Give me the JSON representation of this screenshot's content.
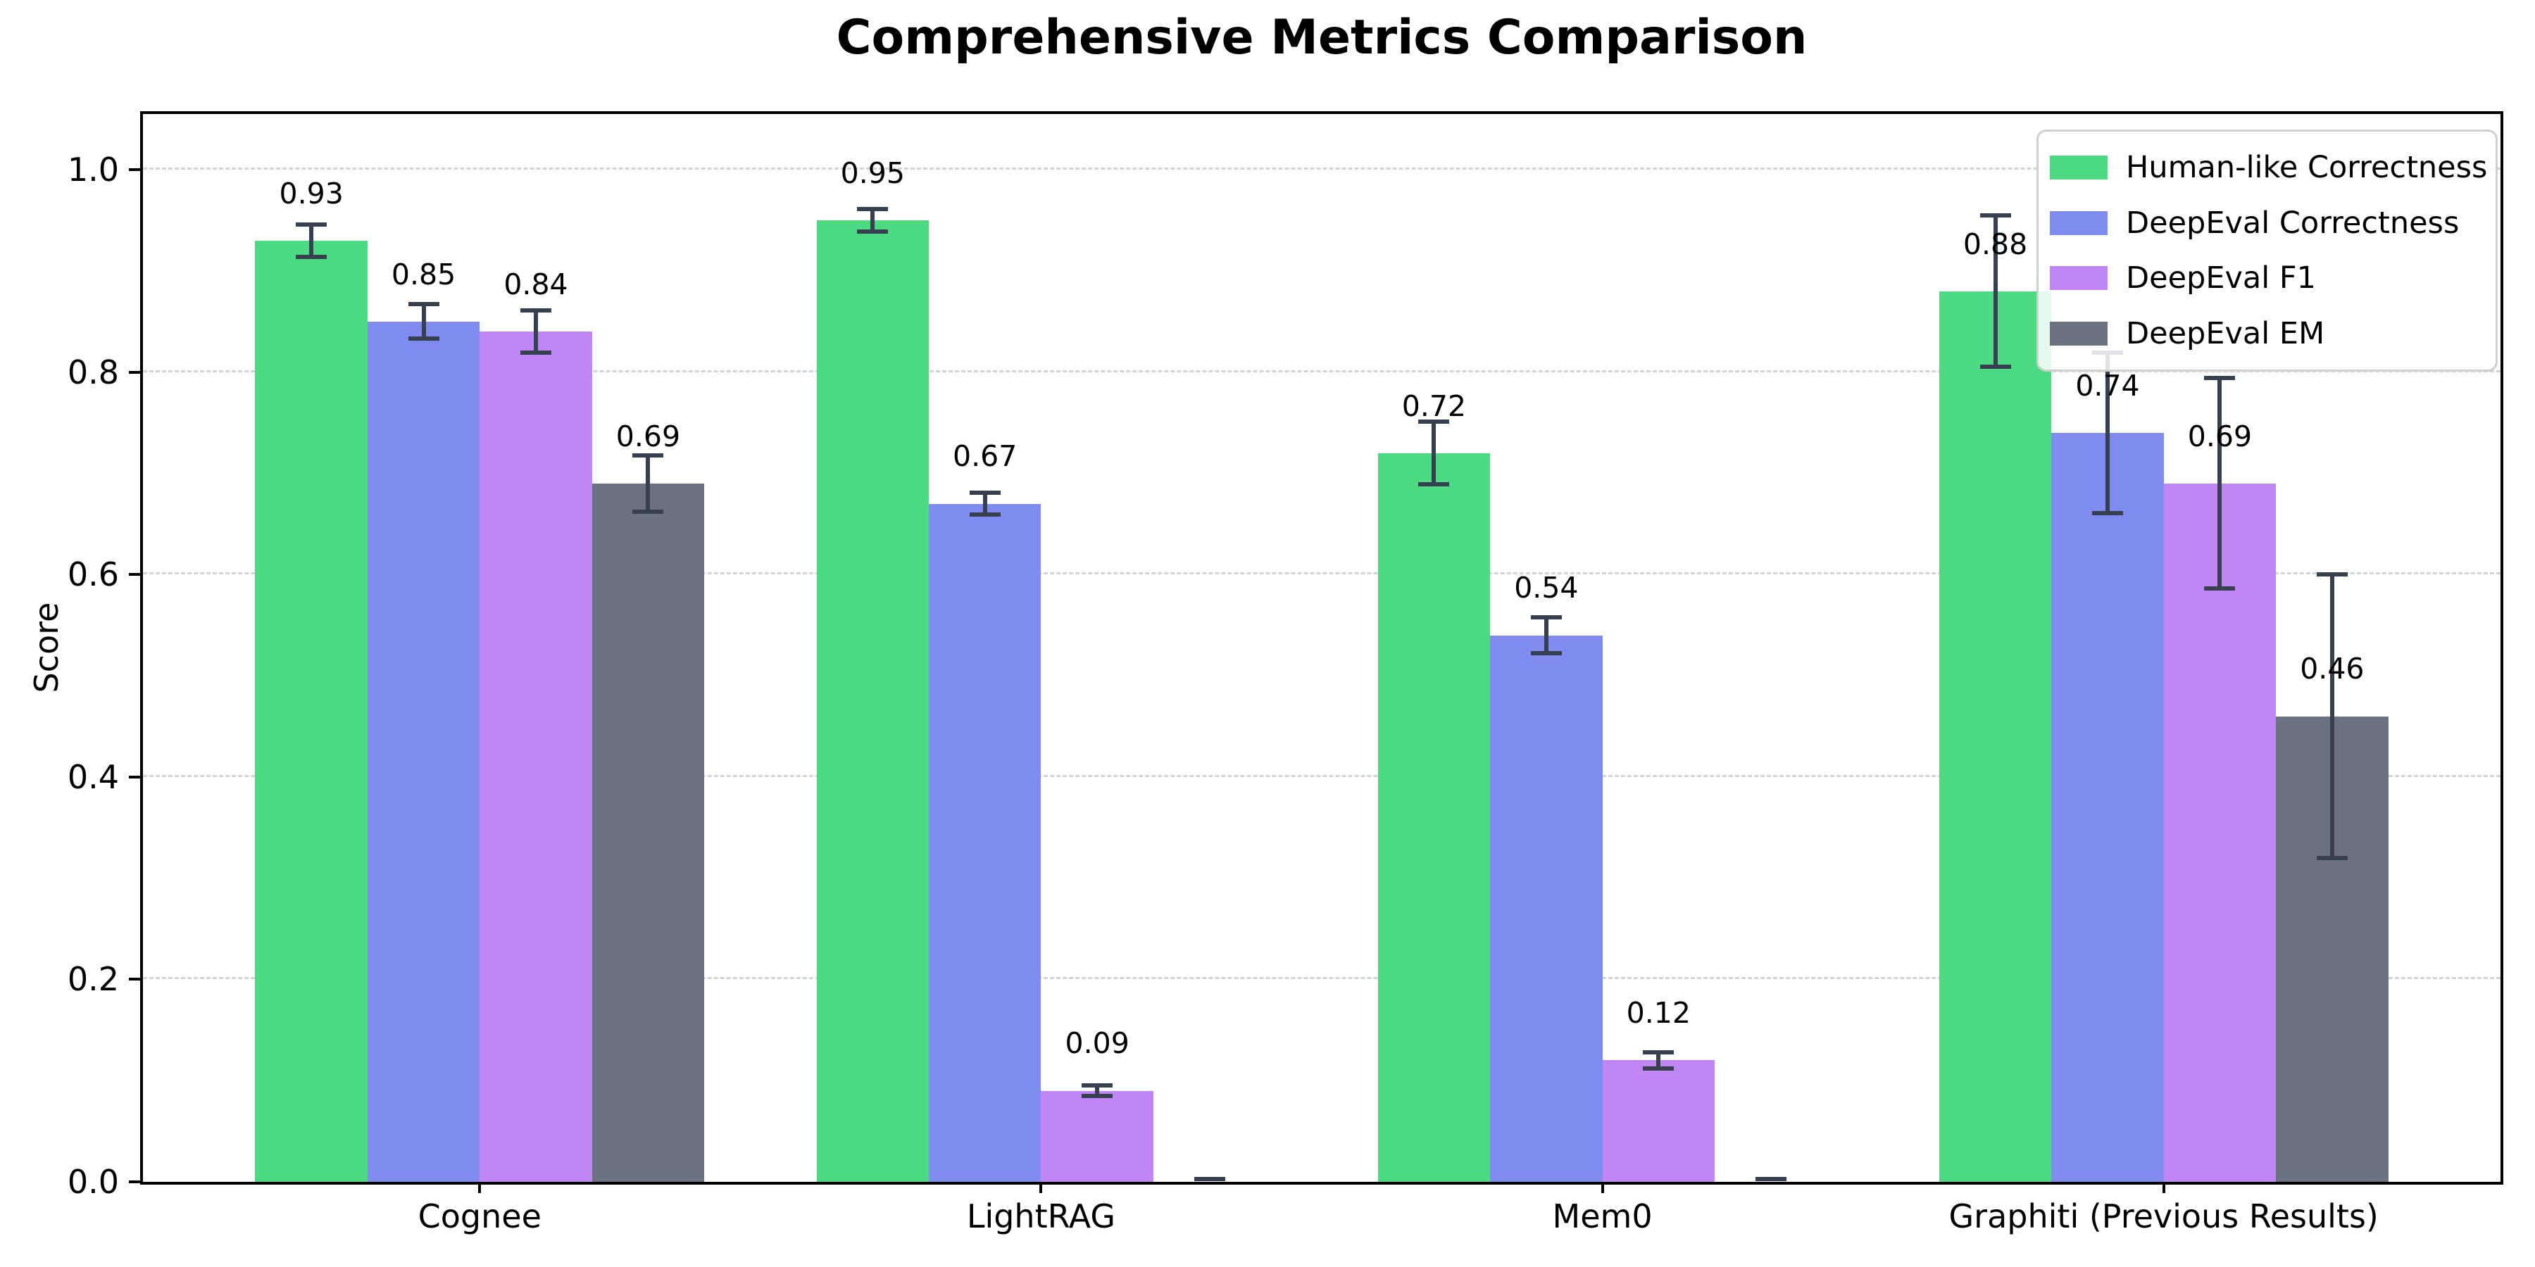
{
  "chart_data": {
    "type": "bar",
    "title": "Comprehensive Metrics Comparison",
    "ylabel": "Score",
    "xlabel": "",
    "categories": [
      "Cognee",
      "LightRAG",
      "Mem0",
      "Graphiti (Previous Results)"
    ],
    "series": [
      {
        "name": "Human-like Correctness",
        "color": "#4cdb83",
        "values": [
          0.93,
          0.95,
          0.72,
          0.88
        ],
        "errors": [
          0.016,
          0.011,
          0.031,
          0.075
        ],
        "labels": [
          "0.93",
          "0.95",
          "0.72",
          "0.88"
        ]
      },
      {
        "name": "DeepEval Correctness",
        "color": "#7f8bef",
        "values": [
          0.85,
          0.67,
          0.54,
          0.74
        ],
        "errors": [
          0.017,
          0.011,
          0.018,
          0.079
        ],
        "labels": [
          "0.85",
          "0.67",
          "0.54",
          "0.74"
        ]
      },
      {
        "name": "DeepEval F1",
        "color": "#c086f4",
        "values": [
          0.84,
          0.09,
          0.12,
          0.69
        ],
        "errors": [
          0.021,
          0.005,
          0.008,
          0.104
        ],
        "labels": [
          "0.84",
          "0.09",
          "0.12",
          "0.69"
        ]
      },
      {
        "name": "DeepEval EM",
        "color": "#6b7280",
        "values": [
          0.69,
          0.0,
          0.0,
          0.46
        ],
        "errors": [
          0.028,
          0.0,
          0.0,
          0.14
        ],
        "labels": [
          "0.69",
          "",
          "",
          "0.46"
        ]
      }
    ],
    "yticks": [
      "0.0",
      "0.2",
      "0.4",
      "0.6",
      "0.8",
      "1.0"
    ],
    "ylim": [
      0,
      1.055
    ],
    "bar_label_offset": 0.03,
    "grid": "horizontal-dashed",
    "legend_position": "upper-right",
    "error_bar_color": "#36404f",
    "grid_color": "#d4d4d4",
    "background_color": "#ffffff"
  }
}
